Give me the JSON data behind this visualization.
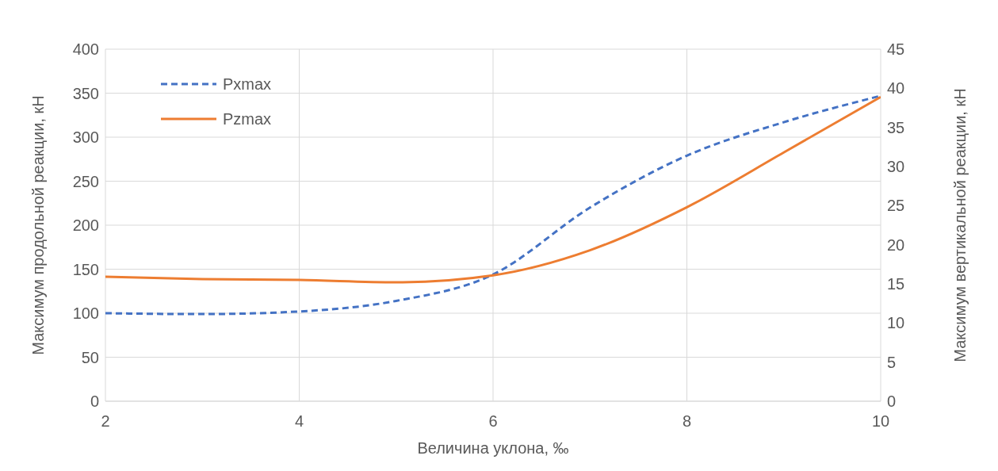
{
  "chart_data": {
    "type": "line",
    "xlabel": "Величина уклона, ‰",
    "ylabel": "Максимум продольной реакции, кН",
    "y2label": "Максимум вертикальной реакции, кН",
    "x": [
      2,
      3,
      4,
      5,
      6,
      7,
      8,
      9,
      10
    ],
    "series": [
      {
        "name": "Pxmax",
        "color": "#4472c4",
        "line_style": "dashed",
        "values": [
          100,
          99,
          102,
          114,
          144,
          220,
          279,
          317,
          347
        ]
      },
      {
        "name": "Pzmax",
        "color": "#ed7d31",
        "line_style": "solid",
        "axis": "y2",
        "values": [
          15.9,
          15.6,
          15.5,
          15.2,
          16.1,
          19.3,
          24.8,
          31.8,
          38.9
        ]
      }
    ],
    "xlim": [
      2,
      10
    ],
    "xticks": [
      2,
      4,
      6,
      8,
      10
    ],
    "ylim": [
      0,
      400
    ],
    "yticks": [
      0,
      50,
      100,
      150,
      200,
      250,
      300,
      350,
      400
    ],
    "y2lim": [
      0,
      45
    ],
    "y2ticks": [
      0,
      5,
      10,
      15,
      20,
      25,
      30,
      35,
      40,
      45
    ],
    "grid": true,
    "legend": "top left",
    "marker": "none"
  }
}
